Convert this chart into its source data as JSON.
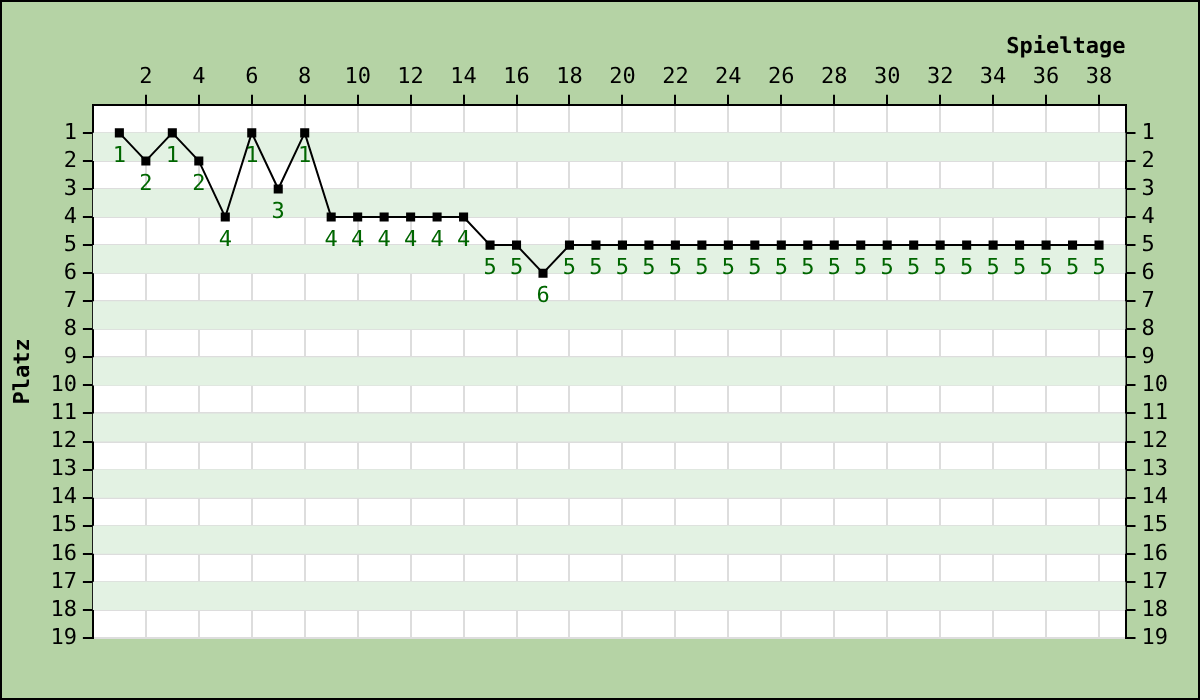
{
  "chart_data": {
    "type": "line",
    "xlabel": "Spieltage",
    "ylabel": "Platz",
    "x": [
      1,
      2,
      3,
      4,
      5,
      6,
      7,
      8,
      9,
      10,
      11,
      12,
      13,
      14,
      15,
      16,
      17,
      18,
      19,
      20,
      21,
      22,
      23,
      24,
      25,
      26,
      27,
      28,
      29,
      30,
      31,
      32,
      33,
      34,
      35,
      36,
      37,
      38
    ],
    "series": [
      {
        "color": "#000000",
        "values": [
          1,
          2,
          1,
          2,
          4,
          1,
          3,
          1,
          4,
          4,
          4,
          4,
          4,
          4,
          5,
          5,
          6,
          5,
          5,
          5,
          5,
          5,
          5,
          5,
          5,
          5,
          5,
          5,
          5,
          5,
          5,
          5,
          5,
          5,
          5,
          5,
          5,
          5
        ]
      }
    ],
    "xlim": [
      0,
      39
    ],
    "xticks": [
      2,
      4,
      6,
      8,
      10,
      12,
      14,
      16,
      18,
      20,
      22,
      24,
      26,
      28,
      30,
      32,
      34,
      36,
      38
    ],
    "ylim": [
      19,
      0
    ],
    "yticks": [
      1,
      2,
      3,
      4,
      5,
      6,
      7,
      8,
      9,
      10,
      11,
      12,
      13,
      14,
      15,
      16,
      17,
      18,
      19
    ],
    "y2lim": [
      19,
      0
    ],
    "y2ticks": [
      1,
      2,
      3,
      4,
      5,
      6,
      7,
      8,
      9,
      10,
      11,
      12,
      13,
      14,
      15,
      16,
      17,
      18,
      19
    ],
    "grid": true,
    "data_labels": true,
    "marker": "square",
    "line_style": "solid",
    "legend": false
  }
}
